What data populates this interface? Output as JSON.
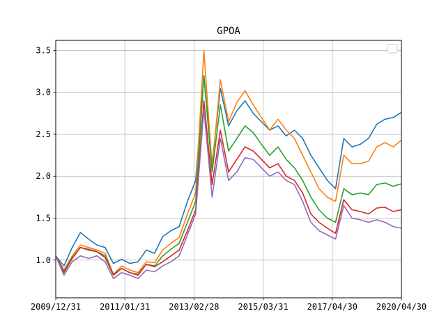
{
  "chart_data": {
    "type": "line",
    "title": "GPOA",
    "xlabel": "",
    "ylabel": "",
    "x_tick_labels": [
      "2009/12/31",
      "2011/01/31",
      "2013/02/28",
      "2015/03/31",
      "2017/04/30",
      "2020/04/30"
    ],
    "y_ticks": [
      1.0,
      1.5,
      2.0,
      2.5,
      3.0,
      3.5
    ],
    "y_tick_labels": [
      "1.0",
      "1.5",
      "2.0",
      "2.5",
      "3.0",
      "3.5"
    ],
    "ylim": [
      0.55,
      3.62
    ],
    "grid": true,
    "legend": "top-right",
    "legend_entries": [],
    "x": [
      "2009/12",
      "2010/03",
      "2010/06",
      "2010/09",
      "2010/12",
      "2011/03",
      "2011/06",
      "2011/09",
      "2011/12",
      "2012/03",
      "2012/06",
      "2012/09",
      "2012/12",
      "2013/03",
      "2013/06",
      "2013/09",
      "2013/12",
      "2014/03",
      "2014/06",
      "2014/09",
      "2014/12",
      "2015/03",
      "2015/06",
      "2015/09",
      "2015/12",
      "2016/03",
      "2016/06",
      "2016/09",
      "2016/12",
      "2017/03",
      "2017/06",
      "2017/09",
      "2017/12",
      "2018/03",
      "2018/06",
      "2018/09",
      "2018/12",
      "2019/03",
      "2019/06",
      "2019/09",
      "2019/12",
      "2020/03",
      "2020/04"
    ],
    "series": [
      {
        "color": "#1f77b4",
        "values": [
          1.05,
          0.93,
          1.15,
          1.33,
          1.25,
          1.18,
          1.15,
          0.96,
          1.01,
          0.96,
          0.98,
          1.12,
          1.08,
          1.28,
          1.35,
          1.4,
          1.7,
          1.95,
          3.2,
          2.15,
          3.05,
          2.6,
          2.78,
          2.9,
          2.75,
          2.65,
          2.55,
          2.6,
          2.48,
          2.55,
          2.45,
          2.25,
          2.1,
          1.95,
          1.85,
          2.45,
          2.35,
          2.38,
          2.45,
          2.62,
          2.68,
          2.7,
          2.76
        ]
      },
      {
        "color": "#ff7f0e",
        "values": [
          1.05,
          0.88,
          1.05,
          1.18,
          1.15,
          1.12,
          1.08,
          0.83,
          0.93,
          0.88,
          0.85,
          0.98,
          0.97,
          1.12,
          1.2,
          1.27,
          1.55,
          1.8,
          3.5,
          2.1,
          3.15,
          2.65,
          2.88,
          3.02,
          2.85,
          2.7,
          2.55,
          2.68,
          2.55,
          2.45,
          2.25,
          2.05,
          1.85,
          1.75,
          1.7,
          2.25,
          2.15,
          2.15,
          2.18,
          2.35,
          2.4,
          2.35,
          2.43
        ]
      },
      {
        "color": "#2ca02c",
        "values": [
          1.05,
          0.87,
          1.03,
          1.15,
          1.13,
          1.1,
          1.05,
          0.83,
          0.9,
          0.85,
          0.83,
          0.95,
          0.93,
          1.05,
          1.13,
          1.2,
          1.45,
          1.7,
          3.2,
          2.05,
          2.85,
          2.3,
          2.45,
          2.6,
          2.52,
          2.38,
          2.25,
          2.35,
          2.2,
          2.1,
          1.95,
          1.75,
          1.6,
          1.5,
          1.45,
          1.85,
          1.78,
          1.8,
          1.78,
          1.9,
          1.92,
          1.88,
          1.91
        ]
      },
      {
        "color": "#d62728",
        "values": [
          1.05,
          0.85,
          1.02,
          1.15,
          1.12,
          1.1,
          1.03,
          0.82,
          0.9,
          0.85,
          0.82,
          0.95,
          0.92,
          0.98,
          1.05,
          1.12,
          1.35,
          1.6,
          2.9,
          1.9,
          2.55,
          2.05,
          2.2,
          2.35,
          2.3,
          2.2,
          2.1,
          2.15,
          2.0,
          1.95,
          1.8,
          1.55,
          1.45,
          1.38,
          1.32,
          1.72,
          1.6,
          1.58,
          1.55,
          1.62,
          1.63,
          1.58,
          1.6
        ]
      },
      {
        "color": "#9467bd",
        "values": [
          1.05,
          0.82,
          0.98,
          1.05,
          1.02,
          1.05,
          0.98,
          0.78,
          0.85,
          0.82,
          0.78,
          0.88,
          0.86,
          0.93,
          0.98,
          1.05,
          1.3,
          1.55,
          2.8,
          1.75,
          2.45,
          1.95,
          2.05,
          2.22,
          2.2,
          2.1,
          2.0,
          2.05,
          1.95,
          1.9,
          1.7,
          1.45,
          1.35,
          1.3,
          1.25,
          1.65,
          1.5,
          1.48,
          1.45,
          1.48,
          1.45,
          1.4,
          1.38
        ]
      }
    ]
  }
}
